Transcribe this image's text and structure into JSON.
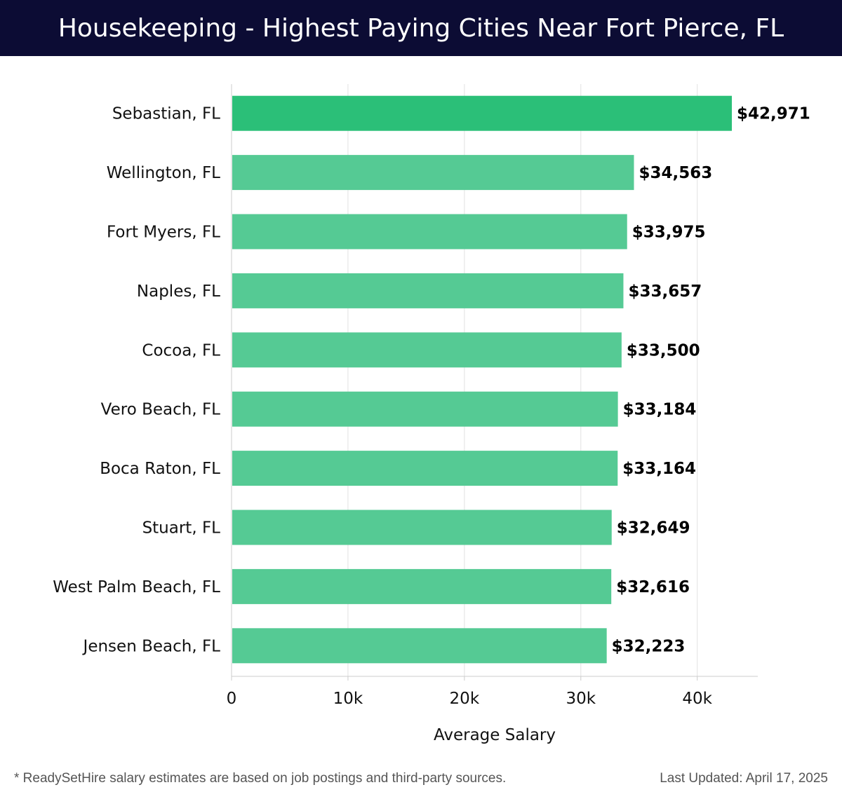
{
  "header": {
    "title": "Housekeeping - Highest Paying Cities Near Fort Pierce, FL"
  },
  "chart_data": {
    "type": "bar",
    "orientation": "horizontal",
    "title": "Housekeeping - Highest Paying Cities Near Fort Pierce, FL",
    "xlabel": "Average Salary",
    "ylabel": "",
    "categories": [
      "Sebastian, FL",
      "Wellington, FL",
      "Fort Myers, FL",
      "Naples, FL",
      "Cocoa, FL",
      "Vero Beach, FL",
      "Boca Raton, FL",
      "Stuart, FL",
      "West Palm Beach, FL",
      "Jensen Beach, FL"
    ],
    "values": [
      42971,
      34563,
      33975,
      33657,
      33500,
      33184,
      33164,
      32649,
      32616,
      32223
    ],
    "value_labels": [
      "$42,971",
      "$34,563",
      "$33,975",
      "$33,657",
      "$33,500",
      "$33,184",
      "$33,164",
      "$32,649",
      "$32,616",
      "$32,223"
    ],
    "xlim": [
      0,
      45200
    ],
    "xticks": [
      0,
      10000,
      20000,
      30000,
      40000
    ],
    "xtick_labels": [
      "0",
      "10k",
      "20k",
      "30k",
      "40k"
    ],
    "grid": "vertical",
    "colors": {
      "highlight_bar": "#2bbf78",
      "bar": "#55ca94",
      "grid": "#e2e2e2",
      "axis": "#cccccc",
      "text": "#111111"
    }
  },
  "footer": {
    "note": "* ReadySetHire salary estimates are based on job postings and third-party sources.",
    "updated": "Last Updated: April 17, 2025"
  }
}
